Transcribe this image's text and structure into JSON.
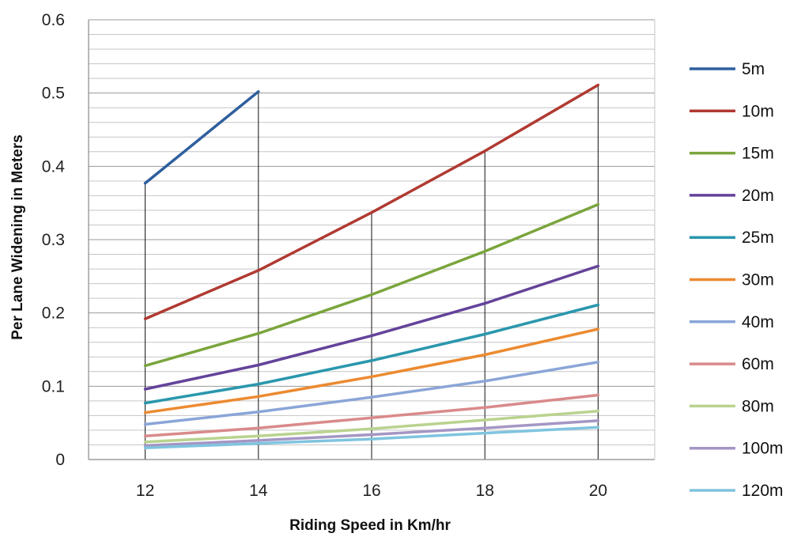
{
  "chart_data": {
    "type": "line",
    "title": "",
    "xlabel": "Riding Speed in Km/hr",
    "ylabel": "Per Lane Widening in Meters",
    "x": [
      12,
      14,
      16,
      18,
      20
    ],
    "xlim": [
      11,
      21
    ],
    "ylim": [
      0,
      0.6
    ],
    "yticks": [
      "0",
      "0.1",
      "0.2",
      "0.3",
      "0.4",
      "0.5",
      "0.6"
    ],
    "xticks": [
      "12",
      "14",
      "16",
      "18",
      "20"
    ],
    "grid": "horizontal minor lines every 0.02",
    "legend": "right",
    "series": [
      {
        "name": "5m",
        "color": "#2e5f9e",
        "values": [
          0.377,
          0.502,
          null,
          null,
          null
        ]
      },
      {
        "name": "10m",
        "color": "#b03a32",
        "values": [
          0.192,
          0.258,
          0.337,
          0.421,
          0.511
        ]
      },
      {
        "name": "15m",
        "color": "#7aa53c",
        "values": [
          0.128,
          0.172,
          0.225,
          0.284,
          0.348
        ]
      },
      {
        "name": "20m",
        "color": "#63439a",
        "values": [
          0.096,
          0.129,
          0.169,
          0.213,
          0.264
        ]
      },
      {
        "name": "25m",
        "color": "#2a97ad",
        "values": [
          0.077,
          0.103,
          0.135,
          0.171,
          0.211
        ]
      },
      {
        "name": "30m",
        "color": "#ec8a30",
        "values": [
          0.064,
          0.086,
          0.113,
          0.143,
          0.178
        ]
      },
      {
        "name": "40m",
        "color": "#8aa5d8",
        "values": [
          0.048,
          0.065,
          0.085,
          0.107,
          0.133
        ]
      },
      {
        "name": "60m",
        "color": "#d98a8a",
        "values": [
          0.032,
          0.043,
          0.057,
          0.071,
          0.088
        ]
      },
      {
        "name": "80m",
        "color": "#b9d38f",
        "values": [
          0.024,
          0.032,
          0.042,
          0.054,
          0.066
        ]
      },
      {
        "name": "100m",
        "color": "#a496c4",
        "values": [
          0.019,
          0.026,
          0.034,
          0.043,
          0.053
        ]
      },
      {
        "name": "120m",
        "color": "#7fc4df",
        "values": [
          0.016,
          0.022,
          0.028,
          0.036,
          0.044
        ]
      }
    ]
  }
}
